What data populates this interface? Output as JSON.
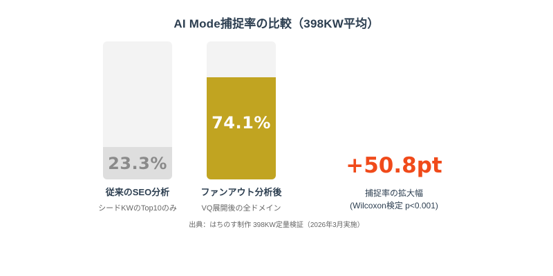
{
  "chart_data": {
    "type": "bar",
    "title": "AI Mode捕捉率の比較（398KW平均）",
    "categories": [
      "従来のSEO分析",
      "ファンアウト分析後"
    ],
    "subcategories": [
      "シードKWのTop10のみ",
      "VQ展開後の全ドメイン"
    ],
    "values": [
      23.3,
      74.1
    ],
    "value_labels": [
      "23.3%",
      "74.1%"
    ],
    "ylim": [
      0,
      100
    ],
    "unit": "%",
    "grid": false,
    "legend": "none",
    "annotation": {
      "value": "+50.8pt",
      "label": "捕捉率の拡大幅",
      "note": "(Wilcoxon検定 p<0.001)"
    },
    "source": "出典：はちのす制作 398KW定量検証（2026年3月実施）"
  },
  "colors": {
    "track": "#f3f3f3",
    "bar1_fill": "#dedede",
    "bar1_text": "#8a8a8a",
    "bar2_fill": "#c1a421",
    "bar2_text": "#ffffff",
    "delta": "#f04a1a",
    "title": "#2c3e50"
  },
  "bars": [
    {
      "value": 23.3,
      "label": "23.3%",
      "name": "従来のSEO分析",
      "sub": "シードKWのTop10のみ"
    },
    {
      "value": 74.1,
      "label": "74.1%",
      "name": "ファンアウト分析後",
      "sub": "VQ展開後の全ドメイン"
    }
  ]
}
